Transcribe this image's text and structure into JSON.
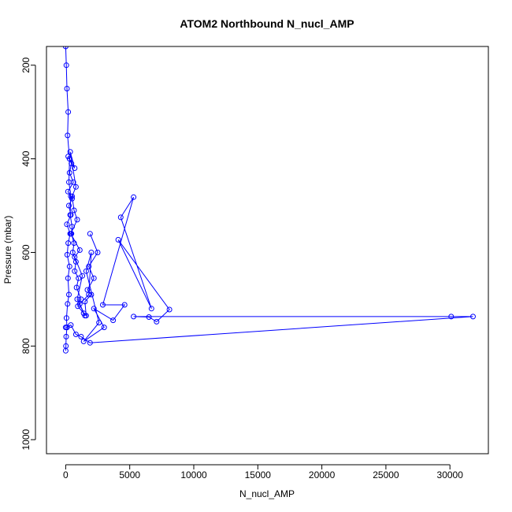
{
  "chart_data": {
    "type": "line",
    "title": "ATOM2 Northbound N_nucl_AMP",
    "xlabel": "N_nucl_AMP",
    "ylabel": "Pressure (mbar)",
    "xlim": [
      -1500,
      33000
    ],
    "ylim": [
      1030,
      160
    ],
    "y_reversed": true,
    "x_ticks": [
      0,
      5000,
      10000,
      15000,
      20000,
      25000,
      30000
    ],
    "y_ticks": [
      200,
      400,
      600,
      800,
      1000
    ],
    "grid": false,
    "legend": "none",
    "colors": {
      "series": "#0000ff",
      "axis": "#000000",
      "background": "#ffffff"
    },
    "series": [
      {
        "x": [
          0,
          20,
          40,
          100,
          60,
          150,
          250,
          180,
          300,
          120,
          200,
          350,
          90,
          400,
          250,
          500,
          180,
          600,
          300,
          450,
          200,
          700,
          350,
          800,
          500,
          650,
          900,
          400,
          1100,
          700,
          1300,
          900,
          1500,
          1100,
          1800,
          2000,
          1600,
          2600,
          1400,
          3000,
          2200,
          3700,
          4600,
          2900,
          5300,
          4300,
          6700,
          4100,
          8100,
          7100,
          6500,
          5300,
          30100,
          31800,
          1900,
          1200,
          800,
          400,
          100,
          0
        ],
        "y": [
          810,
          800,
          780,
          760,
          740,
          710,
          690,
          655,
          630,
          605,
          580,
          560,
          540,
          520,
          500,
          485,
          470,
          450,
          430,
          410,
          395,
          420,
          385,
          460,
          480,
          510,
          530,
          560,
          595,
          610,
          650,
          700,
          735,
          710,
          690,
          600,
          640,
          750,
          790,
          760,
          720,
          745,
          712,
          712,
          482,
          525,
          720,
          573,
          722,
          748,
          738,
          737,
          737,
          737,
          793,
          780,
          775,
          755,
          760,
          760
        ]
      },
      {
        "x": [
          0,
          50,
          100,
          200,
          150,
          300,
          250,
          400,
          350,
          500,
          450,
          650,
          550,
          800,
          700,
          1000,
          850,
          1200,
          950,
          1400,
          1600,
          1500,
          2000,
          1700,
          2200,
          1800,
          2500,
          1900
        ],
        "y": [
          160,
          200,
          250,
          300,
          350,
          400,
          450,
          480,
          520,
          545,
          560,
          580,
          600,
          620,
          640,
          655,
          675,
          700,
          715,
          730,
          735,
          705,
          690,
          680,
          655,
          630,
          600,
          560
        ]
      }
    ]
  }
}
